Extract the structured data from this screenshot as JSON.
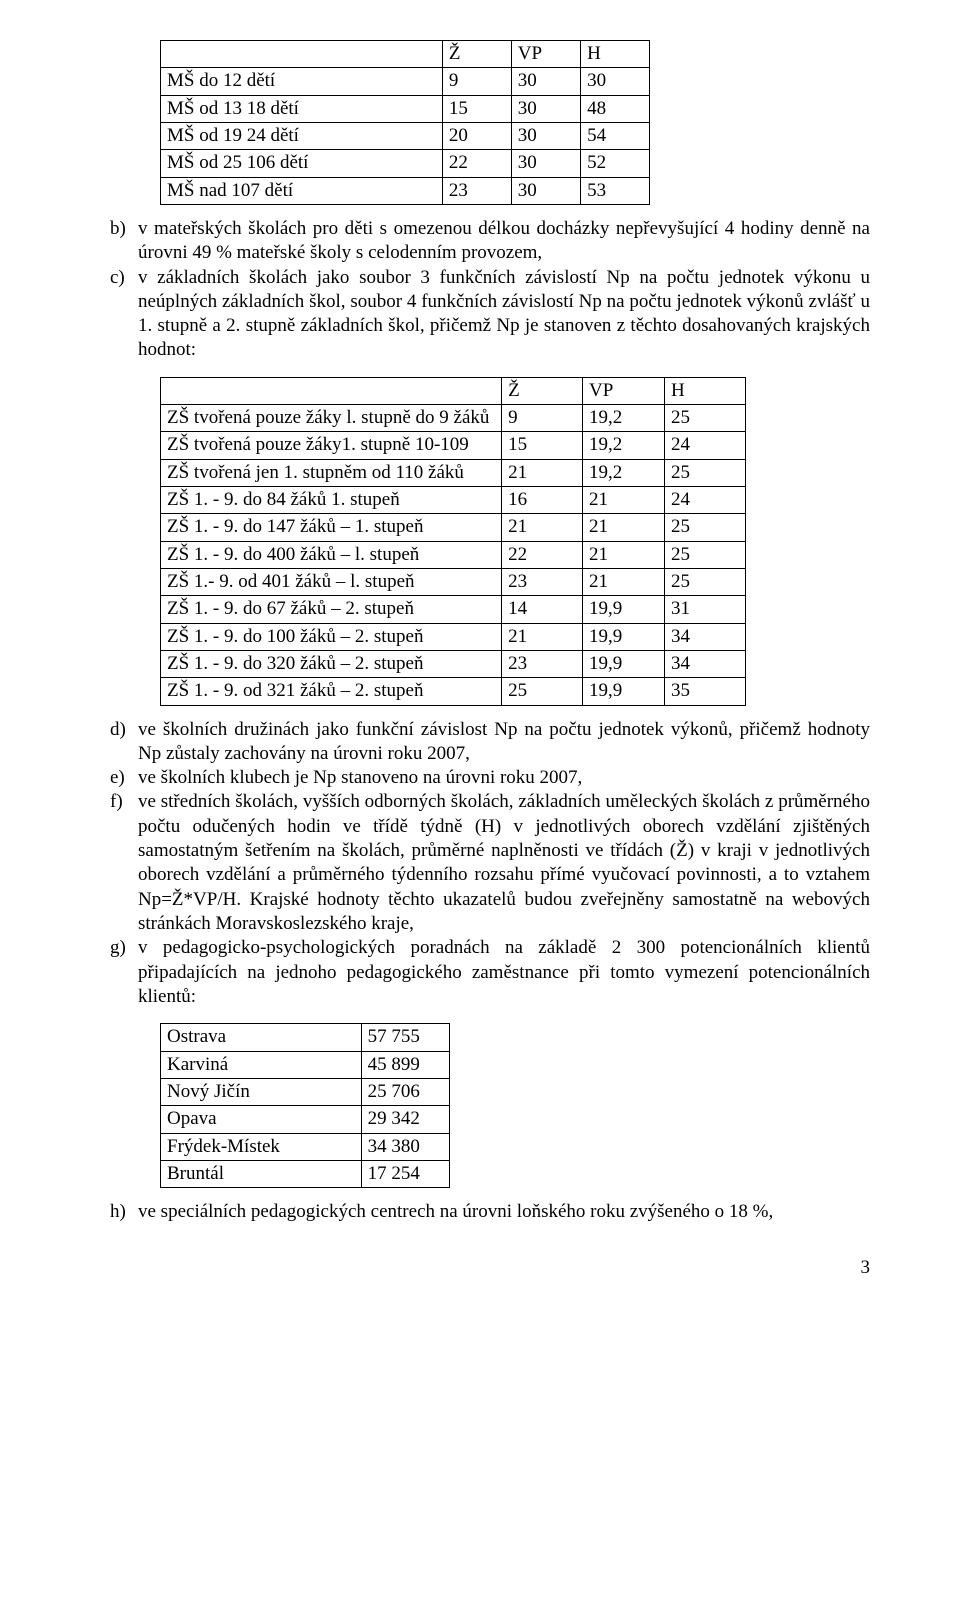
{
  "table1": {
    "headers": [
      "",
      "Ž",
      "VP",
      "H"
    ],
    "rows": [
      [
        "MŠ do 12 dětí",
        "9",
        "30",
        "30"
      ],
      [
        "MŠ od 13 18 dětí",
        "15",
        "30",
        "48"
      ],
      [
        "MŠ od 19 24 dětí",
        "20",
        "30",
        "54"
      ],
      [
        "MŠ od 25 106 dětí",
        "22",
        "30",
        "52"
      ],
      [
        "MŠ nad 107 dětí",
        "23",
        "30",
        "53"
      ]
    ]
  },
  "para_b_marker": "b)",
  "para_b": "v mateřských školách pro děti s omezenou délkou docházky nepřevyšující 4 hodiny denně na úrovni 49 % mateřské školy s celodenním provozem,",
  "para_c_marker": "c)",
  "para_c": "v základních školách jako soubor 3 funkčních závislostí Np na počtu jednotek výkonu u neúplných základních škol, soubor 4 funkčních závislostí Np na počtu jednotek výkonů zvlášť u 1. stupně a 2. stupně základních škol, přičemž Np je stanoven z těchto dosahovaných krajských hodnot:",
  "table2": {
    "headers": [
      "",
      "Ž",
      "VP",
      "H"
    ],
    "rows": [
      [
        "ZŠ tvořená pouze žáky l. stupně do 9 žáků",
        "9",
        "19,2",
        "25"
      ],
      [
        "ZŠ tvořená pouze žáky1. stupně 10-109",
        "15",
        "19,2",
        "24"
      ],
      [
        "ZŠ tvořená jen 1. stupněm od 110 žáků",
        "21",
        "19,2",
        "25"
      ],
      [
        "ZŠ 1. - 9. do 84 žáků 1. stupeň",
        "16",
        "21",
        "24"
      ],
      [
        "ZŠ 1. - 9. do 147 žáků – 1. stupeň",
        "21",
        "21",
        "25"
      ],
      [
        "ZŠ 1. - 9. do 400 žáků – l. stupeň",
        "22",
        "21",
        "25"
      ],
      [
        "ZŠ 1.- 9. od 401 žáků – l. stupeň",
        "23",
        "21",
        "25"
      ],
      [
        "ZŠ 1. - 9. do 67 žáků – 2. stupeň",
        "14",
        "19,9",
        "31"
      ],
      [
        "ZŠ 1. - 9. do 100 žáků – 2. stupeň",
        "21",
        "19,9",
        "34"
      ],
      [
        "ZŠ 1. - 9. do 320 žáků – 2. stupeň",
        "23",
        "19,9",
        "34"
      ],
      [
        "ZŠ 1. - 9. od 321 žáků – 2. stupeň",
        "25",
        "19,9",
        "35"
      ]
    ]
  },
  "items_defg": [
    {
      "m": "d)",
      "t": "ve školních družinách jako funkční závislost Np na počtu jednotek výkonů, přičemž hodnoty Np zůstaly zachovány na úrovni roku 2007,"
    },
    {
      "m": "e)",
      "t": "ve školních klubech je Np stanoveno na úrovni roku 2007,"
    },
    {
      "m": "f)",
      "t": "ve středních školách, vyšších odborných školách, základních uměleckých školách z průměrného počtu odučených hodin ve třídě týdně (H) v jednotlivých oborech vzdělání zjištěných samostatným šetřením na školách, průměrné naplněnosti ve třídách (Ž) v kraji v jednotlivých oborech vzdělání a průměrného týdenního rozsahu přímé vyučovací povinnosti, a to vztahem Np=Ž*VP/H. Krajské hodnoty těchto ukazatelů budou zveřejněny samostatně na webových stránkách Moravskoslezského kraje,"
    },
    {
      "m": "g)",
      "t": "v pedagogicko-psychologických poradnách na základě 2 300 potencionálních klientů připadajících na jednoho pedagogického zaměstnance při tomto vymezení potencionálních klientů:"
    }
  ],
  "table3": {
    "rows": [
      [
        "Ostrava",
        "57 755"
      ],
      [
        "Karviná",
        "45 899"
      ],
      [
        "Nový Jičín",
        "25 706"
      ],
      [
        "Opava",
        "29 342"
      ],
      [
        "Frýdek-Místek",
        "34 380"
      ],
      [
        "Bruntál",
        "17 254"
      ]
    ]
  },
  "item_h": {
    "m": "h)",
    "t": "ve speciálních pedagogických centrech na úrovni loňského roku zvýšeného o 18 %,"
  },
  "page_number": "3"
}
